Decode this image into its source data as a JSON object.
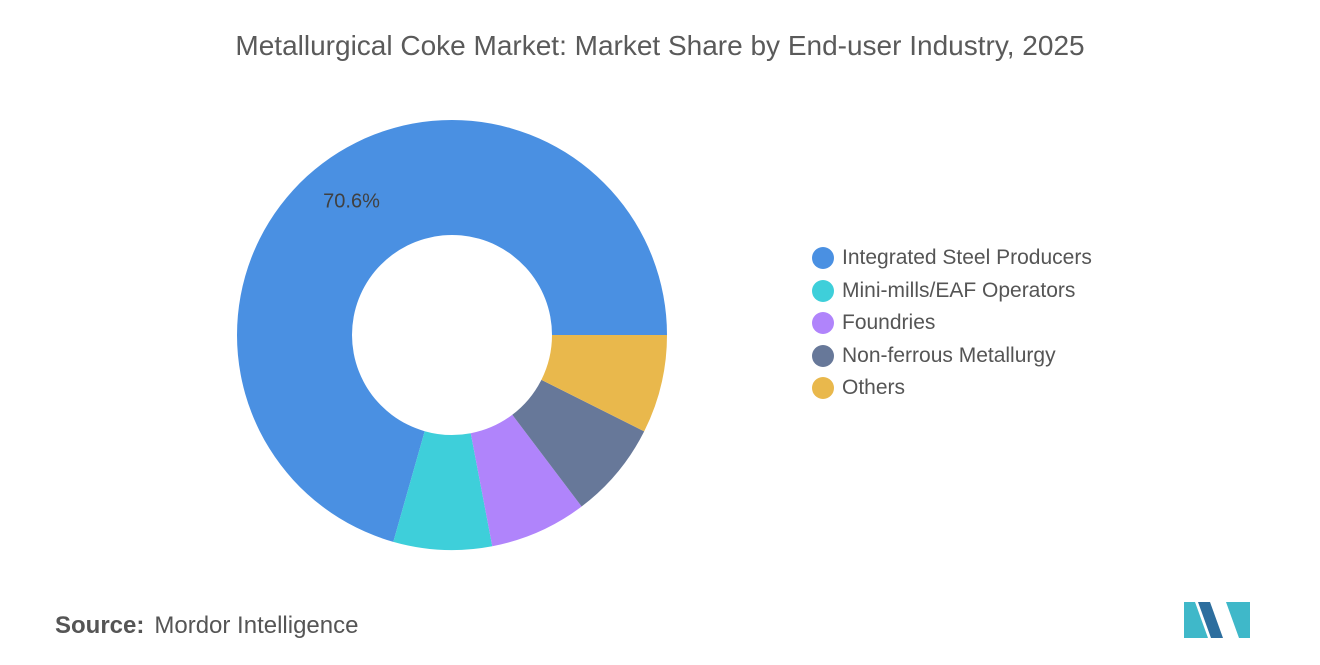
{
  "chart_data": {
    "type": "pie",
    "subtype": "donut",
    "title": "Metallurgical Coke Market: Market Share by End-user Industry, 2025",
    "categories": [
      "Integrated Steel Producers",
      "Mini-mills/EAF Operators",
      "Foundries",
      "Non-ferrous Metallurgy",
      "Others"
    ],
    "values": [
      70.6,
      7.4,
      7.3,
      7.3,
      7.4
    ],
    "colors": [
      "#4a90e2",
      "#3ecfda",
      "#b084fb",
      "#677899",
      "#e9b84c"
    ],
    "data_labels": [
      "70.6%",
      "",
      "",
      "",
      ""
    ],
    "legend_position": "right"
  },
  "source": {
    "label": "Source:",
    "value": "Mordor Intelligence"
  },
  "logo": {
    "name": "mordor-intelligence-logo",
    "colors": [
      "#3fb8c9",
      "#2d6e9e"
    ]
  }
}
